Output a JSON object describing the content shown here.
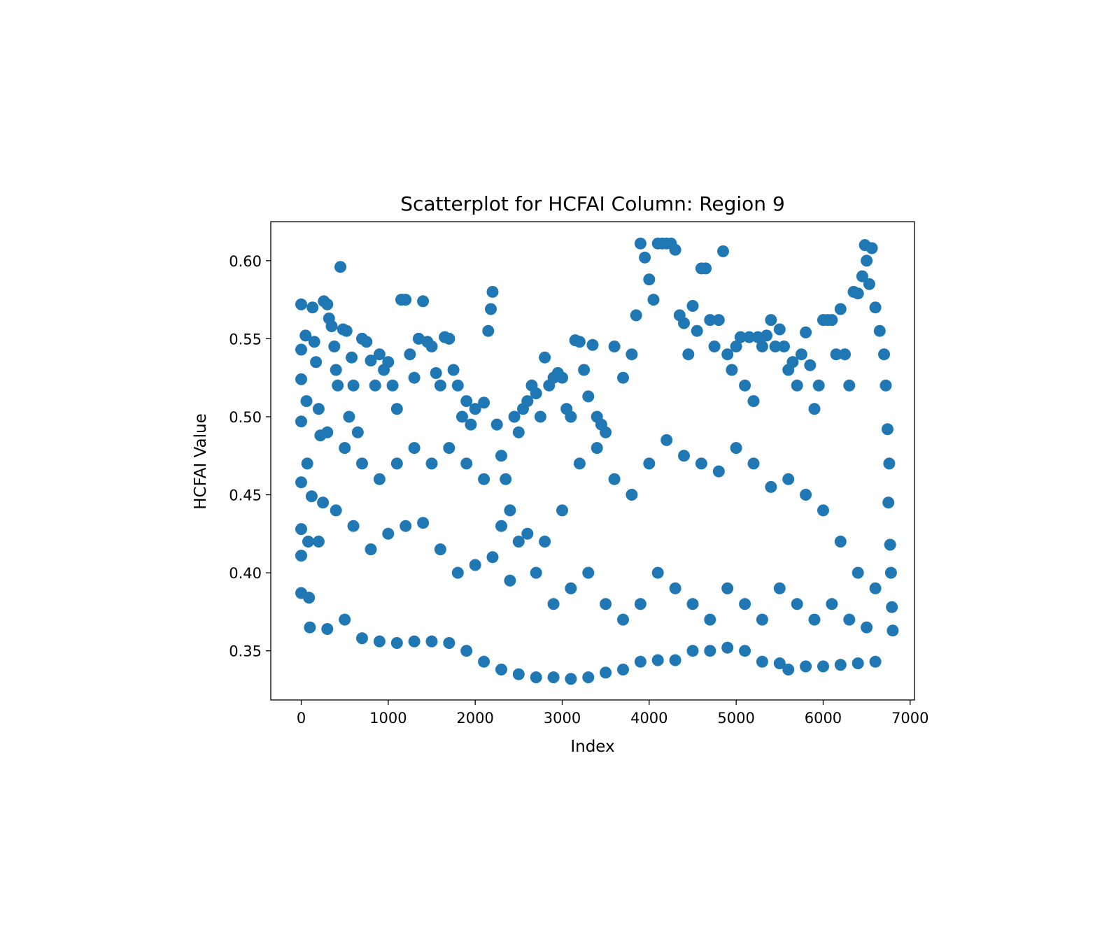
{
  "chart_data": {
    "type": "scatter",
    "title": "Scatterplot for HCFAI Column: Region 9",
    "xlabel": "Index",
    "ylabel": "HCFAI Value",
    "xlim": [
      -350,
      7050
    ],
    "ylim": [
      0.3185,
      0.625
    ],
    "xticks": [
      0,
      1000,
      2000,
      3000,
      4000,
      5000,
      6000,
      7000
    ],
    "xtick_labels": [
      "0",
      "1000",
      "2000",
      "3000",
      "4000",
      "5000",
      "6000",
      "7000"
    ],
    "yticks": [
      0.35,
      0.4,
      0.45,
      0.5,
      0.55,
      0.6
    ],
    "ytick_labels": [
      "0.35",
      "0.40",
      "0.45",
      "0.50",
      "0.55",
      "0.60"
    ],
    "grid": false,
    "marker_color": "#1f77b4",
    "series": [
      {
        "points": [
          [
            0,
            0.572
          ],
          [
            0,
            0.543
          ],
          [
            0,
            0.524
          ],
          [
            0,
            0.497
          ],
          [
            0,
            0.458
          ],
          [
            0,
            0.428
          ],
          [
            0,
            0.411
          ],
          [
            0,
            0.387
          ],
          [
            50,
            0.552
          ],
          [
            60,
            0.51
          ],
          [
            70,
            0.47
          ],
          [
            80,
            0.42
          ],
          [
            90,
            0.384
          ],
          [
            120,
            0.449
          ],
          [
            130,
            0.57
          ],
          [
            150,
            0.548
          ],
          [
            170,
            0.535
          ],
          [
            200,
            0.505
          ],
          [
            220,
            0.488
          ],
          [
            250,
            0.445
          ],
          [
            260,
            0.574
          ],
          [
            300,
            0.572
          ],
          [
            320,
            0.563
          ],
          [
            350,
            0.558
          ],
          [
            380,
            0.545
          ],
          [
            400,
            0.53
          ],
          [
            420,
            0.52
          ],
          [
            450,
            0.596
          ],
          [
            480,
            0.556
          ],
          [
            520,
            0.555
          ],
          [
            550,
            0.5
          ],
          [
            580,
            0.538
          ],
          [
            600,
            0.52
          ],
          [
            650,
            0.49
          ],
          [
            700,
            0.55
          ],
          [
            750,
            0.548
          ],
          [
            800,
            0.536
          ],
          [
            850,
            0.52
          ],
          [
            900,
            0.54
          ],
          [
            950,
            0.53
          ],
          [
            1000,
            0.535
          ],
          [
            1050,
            0.52
          ],
          [
            1100,
            0.505
          ],
          [
            1150,
            0.575
          ],
          [
            1200,
            0.575
          ],
          [
            1250,
            0.54
          ],
          [
            1300,
            0.525
          ],
          [
            1350,
            0.55
          ],
          [
            1400,
            0.574
          ],
          [
            1450,
            0.548
          ],
          [
            1500,
            0.545
          ],
          [
            1550,
            0.528
          ],
          [
            1600,
            0.52
          ],
          [
            1650,
            0.551
          ],
          [
            1700,
            0.55
          ],
          [
            1750,
            0.53
          ],
          [
            1800,
            0.52
          ],
          [
            1850,
            0.5
          ],
          [
            1900,
            0.51
          ],
          [
            1950,
            0.495
          ],
          [
            2000,
            0.505
          ],
          [
            2100,
            0.509
          ],
          [
            2150,
            0.555
          ],
          [
            2180,
            0.569
          ],
          [
            2200,
            0.58
          ],
          [
            2250,
            0.495
          ],
          [
            2300,
            0.475
          ],
          [
            2350,
            0.46
          ],
          [
            2400,
            0.44
          ],
          [
            2450,
            0.5
          ],
          [
            2500,
            0.49
          ],
          [
            2550,
            0.505
          ],
          [
            2600,
            0.51
          ],
          [
            2650,
            0.52
          ],
          [
            2700,
            0.515
          ],
          [
            2750,
            0.5
          ],
          [
            2800,
            0.538
          ],
          [
            2850,
            0.52
          ],
          [
            2900,
            0.525
          ],
          [
            2950,
            0.528
          ],
          [
            3000,
            0.525
          ],
          [
            3050,
            0.505
          ],
          [
            3100,
            0.5
          ],
          [
            3150,
            0.549
          ],
          [
            3200,
            0.548
          ],
          [
            3250,
            0.53
          ],
          [
            3300,
            0.513
          ],
          [
            3350,
            0.546
          ],
          [
            3400,
            0.5
          ],
          [
            3450,
            0.495
          ],
          [
            3500,
            0.49
          ],
          [
            3600,
            0.545
          ],
          [
            3700,
            0.525
          ],
          [
            3800,
            0.54
          ],
          [
            3850,
            0.565
          ],
          [
            3900,
            0.611
          ],
          [
            3950,
            0.602
          ],
          [
            4000,
            0.588
          ],
          [
            4050,
            0.575
          ],
          [
            4100,
            0.611
          ],
          [
            4150,
            0.611
          ],
          [
            4200,
            0.611
          ],
          [
            4250,
            0.611
          ],
          [
            4300,
            0.607
          ],
          [
            4350,
            0.565
          ],
          [
            4400,
            0.56
          ],
          [
            4450,
            0.54
          ],
          [
            4500,
            0.571
          ],
          [
            4550,
            0.555
          ],
          [
            4600,
            0.595
          ],
          [
            4650,
            0.595
          ],
          [
            4700,
            0.562
          ],
          [
            4750,
            0.545
          ],
          [
            4800,
            0.562
          ],
          [
            4850,
            0.606
          ],
          [
            4900,
            0.54
          ],
          [
            4950,
            0.53
          ],
          [
            5000,
            0.545
          ],
          [
            5050,
            0.551
          ],
          [
            5100,
            0.52
          ],
          [
            5150,
            0.551
          ],
          [
            5200,
            0.51
          ],
          [
            5250,
            0.551
          ],
          [
            5300,
            0.545
          ],
          [
            5350,
            0.552
          ],
          [
            5400,
            0.562
          ],
          [
            5450,
            0.545
          ],
          [
            5500,
            0.556
          ],
          [
            5550,
            0.545
          ],
          [
            5600,
            0.53
          ],
          [
            5650,
            0.535
          ],
          [
            5700,
            0.52
          ],
          [
            5750,
            0.54
          ],
          [
            5800,
            0.554
          ],
          [
            5850,
            0.533
          ],
          [
            5900,
            0.505
          ],
          [
            5950,
            0.52
          ],
          [
            6000,
            0.562
          ],
          [
            6050,
            0.562
          ],
          [
            6100,
            0.562
          ],
          [
            6150,
            0.54
          ],
          [
            6200,
            0.569
          ],
          [
            6250,
            0.54
          ],
          [
            6300,
            0.52
          ],
          [
            6350,
            0.58
          ],
          [
            6400,
            0.579
          ],
          [
            6450,
            0.59
          ],
          [
            6480,
            0.61
          ],
          [
            6500,
            0.6
          ],
          [
            6530,
            0.585
          ],
          [
            6560,
            0.608
          ],
          [
            6600,
            0.57
          ],
          [
            6650,
            0.555
          ],
          [
            6700,
            0.54
          ],
          [
            6720,
            0.52
          ],
          [
            6740,
            0.492
          ],
          [
            6750,
            0.445
          ],
          [
            6760,
            0.47
          ],
          [
            6770,
            0.418
          ],
          [
            6780,
            0.4
          ],
          [
            6790,
            0.378
          ],
          [
            6800,
            0.363
          ],
          [
            100,
            0.365
          ],
          [
            300,
            0.364
          ],
          [
            500,
            0.37
          ],
          [
            700,
            0.358
          ],
          [
            900,
            0.356
          ],
          [
            1100,
            0.355
          ],
          [
            1300,
            0.356
          ],
          [
            1500,
            0.356
          ],
          [
            1700,
            0.355
          ],
          [
            1900,
            0.35
          ],
          [
            2100,
            0.343
          ],
          [
            2300,
            0.338
          ],
          [
            2500,
            0.335
          ],
          [
            2700,
            0.333
          ],
          [
            2900,
            0.333
          ],
          [
            3100,
            0.332
          ],
          [
            3300,
            0.333
          ],
          [
            3500,
            0.336
          ],
          [
            3700,
            0.338
          ],
          [
            3900,
            0.343
          ],
          [
            4100,
            0.344
          ],
          [
            4300,
            0.344
          ],
          [
            4500,
            0.35
          ],
          [
            4700,
            0.35
          ],
          [
            4900,
            0.352
          ],
          [
            5100,
            0.35
          ],
          [
            5300,
            0.343
          ],
          [
            5500,
            0.342
          ],
          [
            5600,
            0.338
          ],
          [
            5800,
            0.34
          ],
          [
            6000,
            0.34
          ],
          [
            6200,
            0.341
          ],
          [
            6400,
            0.342
          ],
          [
            6600,
            0.343
          ],
          [
            200,
            0.42
          ],
          [
            400,
            0.44
          ],
          [
            600,
            0.43
          ],
          [
            800,
            0.415
          ],
          [
            1000,
            0.425
          ],
          [
            1200,
            0.43
          ],
          [
            1400,
            0.432
          ],
          [
            1600,
            0.415
          ],
          [
            1800,
            0.4
          ],
          [
            2000,
            0.405
          ],
          [
            2200,
            0.41
          ],
          [
            2400,
            0.395
          ],
          [
            2600,
            0.425
          ],
          [
            2800,
            0.42
          ],
          [
            3000,
            0.44
          ],
          [
            3200,
            0.47
          ],
          [
            3400,
            0.48
          ],
          [
            3600,
            0.46
          ],
          [
            3800,
            0.45
          ],
          [
            4000,
            0.47
          ],
          [
            4200,
            0.485
          ],
          [
            4400,
            0.475
          ],
          [
            4600,
            0.47
          ],
          [
            4800,
            0.465
          ],
          [
            5000,
            0.48
          ],
          [
            5200,
            0.47
          ],
          [
            5400,
            0.455
          ],
          [
            5600,
            0.46
          ],
          [
            5800,
            0.45
          ],
          [
            6000,
            0.44
          ],
          [
            6200,
            0.42
          ],
          [
            6400,
            0.4
          ],
          [
            6600,
            0.39
          ],
          [
            300,
            0.49
          ],
          [
            500,
            0.48
          ],
          [
            700,
            0.47
          ],
          [
            900,
            0.46
          ],
          [
            1100,
            0.47
          ],
          [
            1300,
            0.48
          ],
          [
            1500,
            0.47
          ],
          [
            1700,
            0.48
          ],
          [
            1900,
            0.47
          ],
          [
            2100,
            0.46
          ],
          [
            2300,
            0.43
          ],
          [
            2500,
            0.42
          ],
          [
            2700,
            0.4
          ],
          [
            2900,
            0.38
          ],
          [
            3100,
            0.39
          ],
          [
            3300,
            0.4
          ],
          [
            3500,
            0.38
          ],
          [
            3700,
            0.37
          ],
          [
            3900,
            0.38
          ],
          [
            4100,
            0.4
          ],
          [
            4300,
            0.39
          ],
          [
            4500,
            0.38
          ],
          [
            4700,
            0.37
          ],
          [
            4900,
            0.39
          ],
          [
            5100,
            0.38
          ],
          [
            5300,
            0.37
          ],
          [
            5500,
            0.39
          ],
          [
            5700,
            0.38
          ],
          [
            5900,
            0.37
          ],
          [
            6100,
            0.38
          ],
          [
            6300,
            0.37
          ],
          [
            6500,
            0.365
          ]
        ]
      }
    ]
  }
}
